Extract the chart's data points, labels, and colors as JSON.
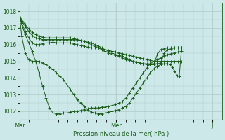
{
  "xlabel": "Pression niveau de la mer( hPa )",
  "background_color": "#cce8e8",
  "grid_color_major": "#b0c8c8",
  "grid_color_minor": "#b0c8c8",
  "line_color": "#1a5c1a",
  "ylim": [
    1011.5,
    1018.5
  ],
  "yticks": [
    1012,
    1013,
    1014,
    1015,
    1016,
    1017,
    1018
  ],
  "xtick_labels": [
    "Mar",
    "Mer",
    "J"
  ],
  "xtick_positions": [
    0,
    0.4167,
    0.8333
  ],
  "series": [
    {
      "x": [
        0.0,
        0.01,
        0.025,
        0.04,
        0.055,
        0.07,
        0.085,
        0.1,
        0.115,
        0.13,
        0.145,
        0.16,
        0.175,
        0.19,
        0.205,
        0.22,
        0.235,
        0.25,
        0.265,
        0.28,
        0.295,
        0.31,
        0.325,
        0.34,
        0.355,
        0.37,
        0.385,
        0.4,
        0.415,
        0.43,
        0.445,
        0.46,
        0.475,
        0.49,
        0.505,
        0.52,
        0.535,
        0.55,
        0.565,
        0.58,
        0.595,
        0.61,
        0.625,
        0.64,
        0.655,
        0.67,
        0.685,
        0.7
      ],
      "y": [
        1017.8,
        1017.2,
        1016.6,
        1016.1,
        1015.6,
        1015.0,
        1014.3,
        1013.5,
        1012.8,
        1012.2,
        1011.9,
        1011.85,
        1011.85,
        1011.9,
        1011.9,
        1011.95,
        1012.0,
        1012.0,
        1012.05,
        1012.1,
        1012.15,
        1012.2,
        1012.2,
        1012.2,
        1012.25,
        1012.25,
        1012.3,
        1012.35,
        1012.4,
        1012.5,
        1012.6,
        1012.8,
        1013.1,
        1013.4,
        1013.7,
        1014.0,
        1014.3,
        1014.6,
        1014.85,
        1015.0,
        1015.1,
        1015.2,
        1015.3,
        1015.4,
        1015.45,
        1015.5,
        1015.55,
        1015.6
      ]
    },
    {
      "x": [
        0.0,
        0.01,
        0.025,
        0.04,
        0.055,
        0.07,
        0.085,
        0.1,
        0.115,
        0.13,
        0.145,
        0.16,
        0.175,
        0.19,
        0.205,
        0.22,
        0.235,
        0.25,
        0.265,
        0.28,
        0.295,
        0.31,
        0.325,
        0.34,
        0.355,
        0.37,
        0.385,
        0.4,
        0.415,
        0.43,
        0.445,
        0.46,
        0.475,
        0.49,
        0.505,
        0.52,
        0.535,
        0.55,
        0.565,
        0.58,
        0.595,
        0.61,
        0.625,
        0.64,
        0.655,
        0.67,
        0.685,
        0.7
      ],
      "y": [
        1017.8,
        1017.3,
        1016.8,
        1016.4,
        1016.1,
        1016.0,
        1016.0,
        1016.05,
        1016.1,
        1016.1,
        1016.15,
        1016.1,
        1016.1,
        1016.1,
        1016.1,
        1016.1,
        1016.05,
        1016.0,
        1015.95,
        1015.9,
        1015.85,
        1015.8,
        1015.8,
        1015.8,
        1015.75,
        1015.7,
        1015.65,
        1015.6,
        1015.55,
        1015.5,
        1015.45,
        1015.4,
        1015.35,
        1015.3,
        1015.25,
        1015.2,
        1015.15,
        1015.1,
        1015.05,
        1015.0,
        1015.0,
        1015.0,
        1015.0,
        1015.0,
        1015.0,
        1015.0,
        1015.0,
        1015.0
      ]
    },
    {
      "x": [
        0.0,
        0.01,
        0.025,
        0.04,
        0.055,
        0.07,
        0.085,
        0.1,
        0.115,
        0.13,
        0.145,
        0.16,
        0.175,
        0.19,
        0.205,
        0.22,
        0.235,
        0.25,
        0.265,
        0.28,
        0.295,
        0.31,
        0.325,
        0.34,
        0.355,
        0.37,
        0.385,
        0.4,
        0.415,
        0.43,
        0.445,
        0.46,
        0.475,
        0.49,
        0.505,
        0.52,
        0.535,
        0.55,
        0.565,
        0.58,
        0.595,
        0.61,
        0.625,
        0.64,
        0.655,
        0.67,
        0.685,
        0.7
      ],
      "y": [
        1017.8,
        1017.4,
        1017.1,
        1016.8,
        1016.55,
        1016.4,
        1016.35,
        1016.3,
        1016.3,
        1016.3,
        1016.3,
        1016.3,
        1016.3,
        1016.3,
        1016.3,
        1016.3,
        1016.3,
        1016.3,
        1016.25,
        1016.2,
        1016.15,
        1016.1,
        1016.0,
        1015.9,
        1015.8,
        1015.7,
        1015.6,
        1015.5,
        1015.4,
        1015.35,
        1015.3,
        1015.2,
        1015.1,
        1015.0,
        1014.95,
        1014.9,
        1014.85,
        1014.85,
        1014.85,
        1014.85,
        1014.85,
        1014.9,
        1015.5,
        1015.7,
        1015.75,
        1015.8,
        1015.8,
        1015.8
      ]
    },
    {
      "x": [
        0.0,
        0.01,
        0.025,
        0.04,
        0.055,
        0.07,
        0.085,
        0.1,
        0.115,
        0.13,
        0.145,
        0.16,
        0.175,
        0.19,
        0.205,
        0.22,
        0.235,
        0.25,
        0.265,
        0.28,
        0.295,
        0.31,
        0.325,
        0.34,
        0.355,
        0.37,
        0.385,
        0.4,
        0.415,
        0.43,
        0.445,
        0.46,
        0.475,
        0.49,
        0.505,
        0.52,
        0.535,
        0.55,
        0.565,
        0.58,
        0.595,
        0.61,
        0.625,
        0.64,
        0.655,
        0.67,
        0.685,
        0.7
      ],
      "y": [
        1017.8,
        1017.5,
        1017.2,
        1016.95,
        1016.75,
        1016.6,
        1016.5,
        1016.45,
        1016.4,
        1016.4,
        1016.4,
        1016.4,
        1016.4,
        1016.4,
        1016.4,
        1016.4,
        1016.35,
        1016.3,
        1016.25,
        1016.2,
        1016.1,
        1016.0,
        1015.9,
        1015.8,
        1015.7,
        1015.6,
        1015.5,
        1015.4,
        1015.35,
        1015.3,
        1015.2,
        1015.1,
        1015.05,
        1015.0,
        1014.95,
        1014.9,
        1014.85,
        1014.8,
        1014.8,
        1014.8,
        1015.4,
        1015.7,
        1015.75,
        1015.8,
        1015.8,
        1015.8,
        1015.8,
        1015.8
      ]
    },
    {
      "x": [
        0.0,
        0.01,
        0.025,
        0.04,
        0.055,
        0.07,
        0.085,
        0.1,
        0.115,
        0.13,
        0.145,
        0.16,
        0.175,
        0.19,
        0.205,
        0.22,
        0.235,
        0.25,
        0.265,
        0.28,
        0.295,
        0.31,
        0.325,
        0.34,
        0.355,
        0.37,
        0.385,
        0.4,
        0.415,
        0.43,
        0.445,
        0.46,
        0.475,
        0.49,
        0.505,
        0.52,
        0.535,
        0.55,
        0.565,
        0.58,
        0.595,
        0.61,
        0.625,
        0.64,
        0.65,
        0.66,
        0.67,
        0.68,
        0.69,
        0.7
      ],
      "y": [
        1017.8,
        1016.5,
        1015.5,
        1015.1,
        1015.0,
        1015.0,
        1015.0,
        1014.9,
        1014.8,
        1014.65,
        1014.5,
        1014.3,
        1014.1,
        1013.9,
        1013.6,
        1013.3,
        1013.0,
        1012.7,
        1012.5,
        1012.3,
        1012.1,
        1011.95,
        1011.9,
        1011.85,
        1011.85,
        1011.9,
        1011.95,
        1012.0,
        1012.05,
        1012.1,
        1012.2,
        1012.3,
        1012.5,
        1012.8,
        1013.1,
        1013.4,
        1013.7,
        1014.0,
        1014.3,
        1014.55,
        1014.7,
        1014.8,
        1014.85,
        1014.85,
        1014.8,
        1014.65,
        1014.4,
        1014.15,
        1014.1,
        1015.8
      ]
    }
  ]
}
